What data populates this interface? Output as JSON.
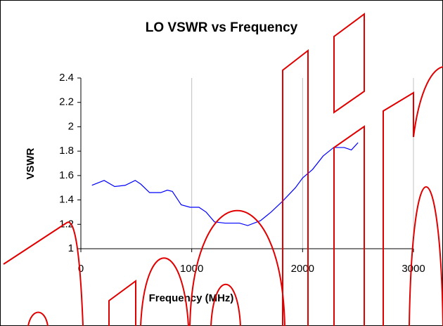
{
  "chart_data": {
    "type": "line",
    "title": "LO VSWR vs Frequency",
    "x_label": "Frequency (MHz)",
    "y_label": "VSWR",
    "x": [
      100,
      210,
      305,
      400,
      490,
      540,
      620,
      720,
      780,
      825,
      905,
      985,
      1065,
      1130,
      1205,
      1300,
      1430,
      1505,
      1620,
      1715,
      1820,
      1935,
      2000,
      2090,
      2185,
      2280,
      2375,
      2440,
      2500
    ],
    "series": [
      {
        "name": "VSWR",
        "color": "#0000ff",
        "values": [
          1.52,
          1.56,
          1.51,
          1.52,
          1.56,
          1.53,
          1.46,
          1.46,
          1.48,
          1.47,
          1.36,
          1.34,
          1.34,
          1.3,
          1.22,
          1.21,
          1.21,
          1.19,
          1.23,
          1.3,
          1.39,
          1.5,
          1.58,
          1.65,
          1.76,
          1.83,
          1.83,
          1.81,
          1.87
        ]
      }
    ],
    "xlim": [
      0,
      3000
    ],
    "xticks": [
      0,
      1000,
      2000,
      3000
    ],
    "ylim": [
      1,
      2.4
    ],
    "yticks": [
      1,
      1.2,
      1.4,
      1.6,
      1.8,
      2,
      2.2,
      2.4
    ],
    "grid": true
  }
}
